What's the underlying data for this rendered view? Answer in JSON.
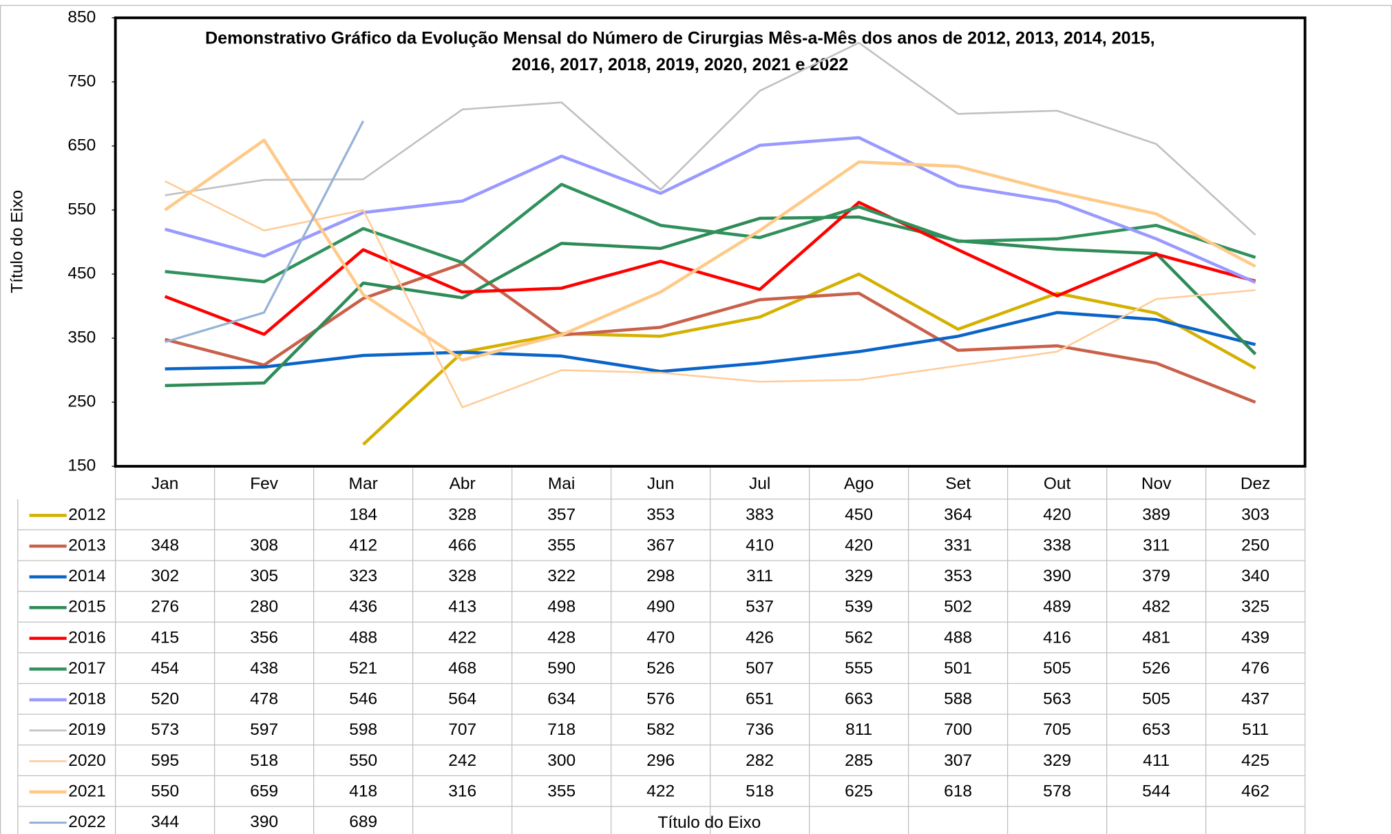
{
  "chart_data": {
    "type": "line",
    "title": [
      "Demonstrativo Gráfico da Evolução Mensal do Número de Cirurgias Mês-a-Mês dos anos de  2012, 2013, 2014, 2015,",
      "2016, 2017, 2018, 2019, 2020, 2021 e 2022"
    ],
    "y_label": "Título do Eixo",
    "x_label": "Título do Eixo",
    "categories": [
      "Jan",
      "Fev",
      "Mar",
      "Abr",
      "Mai",
      "Jun",
      "Jul",
      "Ago",
      "Set",
      "Out",
      "Nov",
      "Dez"
    ],
    "ylim": [
      150,
      850
    ],
    "yticks": [
      150,
      250,
      350,
      450,
      550,
      650,
      750,
      850
    ],
    "grid": false,
    "series": [
      {
        "name": "2012",
        "color": "#d4b000",
        "width": 3.5,
        "values": [
          null,
          null,
          184,
          328,
          357,
          353,
          383,
          450,
          364,
          420,
          389,
          303
        ]
      },
      {
        "name": "2013",
        "color": "#c9604a",
        "width": 3.5,
        "values": [
          348,
          308,
          412,
          466,
          355,
          367,
          410,
          420,
          331,
          338,
          311,
          250
        ]
      },
      {
        "name": "2014",
        "color": "#0a64c8",
        "width": 3.5,
        "values": [
          302,
          305,
          323,
          328,
          322,
          298,
          311,
          329,
          353,
          390,
          379,
          340
        ]
      },
      {
        "name": "2015",
        "color": "#2e8b57",
        "width": 3.5,
        "values": [
          276,
          280,
          436,
          413,
          498,
          490,
          537,
          539,
          502,
          489,
          482,
          325
        ]
      },
      {
        "name": "2016",
        "color": "#ff0000",
        "width": 3.5,
        "values": [
          415,
          356,
          488,
          422,
          428,
          470,
          426,
          562,
          488,
          416,
          481,
          439
        ]
      },
      {
        "name": "2017",
        "color": "#30915c",
        "width": 3.5,
        "values": [
          454,
          438,
          521,
          468,
          590,
          526,
          507,
          555,
          501,
          505,
          526,
          476
        ]
      },
      {
        "name": "2018",
        "color": "#9999ff",
        "width": 3.5,
        "values": [
          520,
          478,
          546,
          564,
          634,
          576,
          651,
          663,
          588,
          563,
          505,
          437
        ]
      },
      {
        "name": "2019",
        "color": "#c0c0c0",
        "width": 2,
        "values": [
          573,
          597,
          598,
          707,
          718,
          582,
          736,
          811,
          700,
          705,
          653,
          511
        ]
      },
      {
        "name": "2020",
        "color": "#ffcc99",
        "width": 2,
        "values": [
          595,
          518,
          550,
          242,
          300,
          296,
          282,
          285,
          307,
          329,
          411,
          425
        ]
      },
      {
        "name": "2021",
        "color": "#ffc987",
        "width": 3.5,
        "values": [
          550,
          659,
          418,
          316,
          355,
          422,
          518,
          625,
          618,
          578,
          544,
          462
        ]
      },
      {
        "name": "2022",
        "color": "#95b3d7",
        "width": 2.5,
        "values": [
          344,
          390,
          689,
          null,
          null,
          null,
          null,
          null,
          null,
          null,
          null,
          null
        ]
      }
    ]
  }
}
